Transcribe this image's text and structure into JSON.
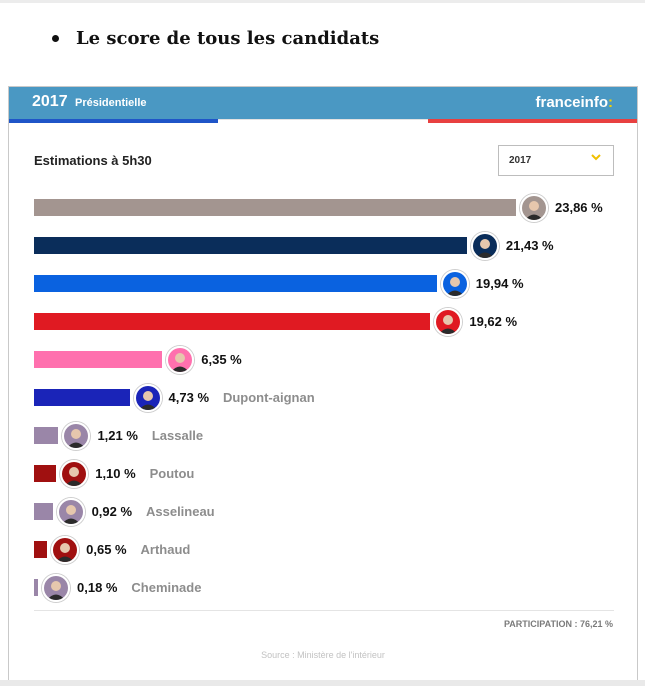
{
  "page": {
    "bullet_title": "Le score de tous les candidats"
  },
  "widget": {
    "year": "2017",
    "election_label": "Présidentielle",
    "brand_name": "franceinfo",
    "brand_colon": ":",
    "subtitle": "Estimations à 5h30",
    "select_value": "2017",
    "participation": "PARTICIPATION : 76,21 %",
    "source": "Source : Ministère de l'intérieur",
    "colors": {
      "header": "#4a98c3",
      "tricolor_blue": "#1f55c8",
      "tricolor_red": "#e84040",
      "brand_accent": "#f5d000",
      "select_chevron": "#f0c000"
    }
  },
  "chart_data": {
    "type": "bar",
    "orientation": "horizontal",
    "xlim": [
      0,
      23.86
    ],
    "candidates": [
      {
        "value": 23.86,
        "label": "23,86 %",
        "name": "",
        "color": "#a39590"
      },
      {
        "value": 21.43,
        "label": "21,43 %",
        "name": "",
        "color": "#0a2d5a"
      },
      {
        "value": 19.94,
        "label": "19,94 %",
        "name": "",
        "color": "#0a62e0"
      },
      {
        "value": 19.62,
        "label": "19,62 %",
        "name": "",
        "color": "#e01a22"
      },
      {
        "value": 6.35,
        "label": "6,35 %",
        "name": "",
        "color": "#ff70ae"
      },
      {
        "value": 4.73,
        "label": "4,73 %",
        "name": "Dupont-aignan",
        "color": "#1a24b8"
      },
      {
        "value": 1.21,
        "label": "1,21 %",
        "name": "Lassalle",
        "color": "#9a86a8"
      },
      {
        "value": 1.1,
        "label": "1,10 %",
        "name": "Poutou",
        "color": "#a01010"
      },
      {
        "value": 0.92,
        "label": "0,92 %",
        "name": "Asselineau",
        "color": "#9a86a8"
      },
      {
        "value": 0.65,
        "label": "0,65 %",
        "name": "Arthaud",
        "color": "#a01010"
      },
      {
        "value": 0.18,
        "label": "0,18 %",
        "name": "Cheminade",
        "color": "#9a86a8"
      }
    ]
  }
}
